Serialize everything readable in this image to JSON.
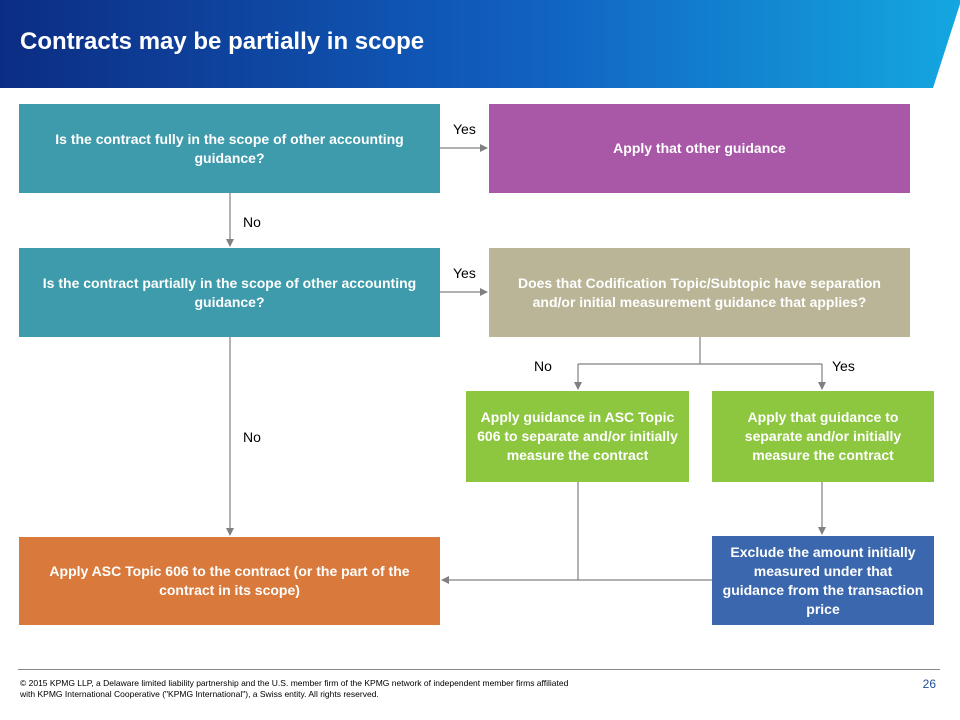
{
  "header": {
    "title": "Contracts may be partially in scope",
    "gradient_start": "#0c2d83",
    "gradient_end": "#14a7e0"
  },
  "boxes": {
    "q1": "Is the contract fully in the scope of other accounting guidance?",
    "a1": "Apply that other guidance",
    "q2": "Is the contract partially in the scope of other accounting guidance?",
    "q3": "Does that Codification Topic/Subtopic have separation and/or initial measurement guidance that applies?",
    "g1": "Apply guidance in ASC Topic 606 to separate and/or initially measure the contract",
    "g2": "Apply that guidance to separate and/or initially measure the contract",
    "o1": "Apply ASC Topic 606 to the contract (or the part of the contract in its scope)",
    "b1": "Exclude the amount initially measured under that guidance from the transaction price"
  },
  "labels": {
    "yes1": "Yes",
    "no1": "No",
    "yes2": "Yes",
    "no2": "No",
    "no3": "No",
    "yes3": "Yes"
  },
  "colors": {
    "teal": "#3e9bab",
    "purple": "#a958a8",
    "khaki": "#b9b596",
    "green": "#8dc63f",
    "orange": "#d97a3c",
    "blue": "#3a67ad",
    "connector": "#808080"
  },
  "footer": {
    "copyright": "© 2015 KPMG LLP, a Delaware limited liability partnership and the U.S. member firm of the KPMG network of independent member firms affiliated with KPMG International Cooperative (\"KPMG International\"), a Swiss entity. All rights reserved.",
    "page_number": "26"
  }
}
